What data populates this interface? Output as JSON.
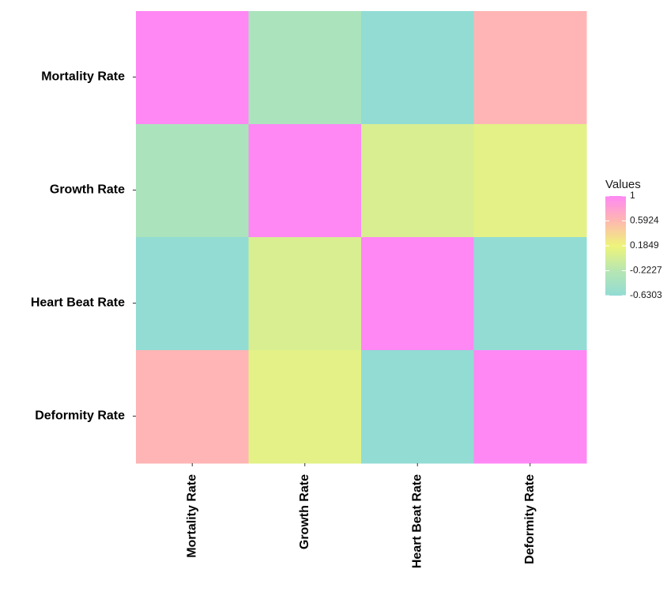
{
  "chart_data": {
    "type": "heatmap",
    "rows": [
      "Mortality Rate",
      "Growth Rate",
      "Heart Beat Rate",
      "Deformity Rate"
    ],
    "columns": [
      "Mortality Rate",
      "Growth Rate",
      "Heart Beat Rate",
      "Deformity Rate"
    ],
    "values": [
      [
        1.0,
        -0.35,
        -0.63,
        0.62
      ],
      [
        -0.35,
        1.0,
        0.02,
        0.1
      ],
      [
        -0.63,
        0.02,
        1.0,
        -0.63
      ],
      [
        0.62,
        0.1,
        -0.63,
        1.0
      ]
    ],
    "color_scale": {
      "min": -0.6303,
      "max": 1.0,
      "stops": [
        {
          "value": -0.6303,
          "color": "#92dcd4"
        },
        {
          "value": -0.2227,
          "color": "#b7e6b2"
        },
        {
          "value": 0.1849,
          "color": "#eef47a"
        },
        {
          "value": 0.5924,
          "color": "#ffb8b0"
        },
        {
          "value": 1.0,
          "color": "#ff88f4"
        }
      ]
    },
    "legend": {
      "title": "Values",
      "ticks": [
        "1",
        "0.5924",
        "0.1849",
        "-0.2227",
        "-0.6303"
      ],
      "tick_values": [
        1.0,
        0.5924,
        0.1849,
        -0.2227,
        -0.6303
      ],
      "placement": "right"
    },
    "title": "",
    "xlabel": "",
    "ylabel": ""
  }
}
